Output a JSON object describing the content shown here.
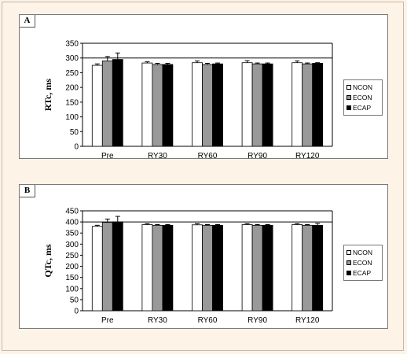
{
  "series_colors": {
    "NCON": "#ffffff",
    "ECON": "#999999",
    "ECAP": "#000000"
  },
  "chart_data": [
    {
      "panel": "A",
      "type": "bar",
      "ylabel": "RTc, ms",
      "ylim": [
        0,
        350
      ],
      "yticks": [
        0,
        50,
        100,
        150,
        200,
        250,
        300,
        350
      ],
      "categories": [
        "Pre",
        "RY30",
        "RY60",
        "RY90",
        "RY120"
      ],
      "legend": "right",
      "series": [
        {
          "name": "NCON",
          "values": [
            275,
            283,
            284,
            284,
            284
          ],
          "errors": [
            5,
            4,
            6,
            7,
            6
          ]
        },
        {
          "name": "ECON",
          "values": [
            290,
            278,
            278,
            280,
            280
          ],
          "errors": [
            15,
            4,
            4,
            3,
            3
          ]
        },
        {
          "name": "ECAP",
          "values": [
            295,
            278,
            280,
            280,
            282
          ],
          "errors": [
            22,
            4,
            3,
            3,
            2
          ]
        }
      ]
    },
    {
      "panel": "B",
      "type": "bar",
      "ylabel": "QTc, ms",
      "ylim": [
        0,
        450
      ],
      "yticks": [
        0,
        50,
        100,
        150,
        200,
        250,
        300,
        350,
        400,
        450
      ],
      "categories": [
        "Pre",
        "RY30",
        "RY60",
        "RY90",
        "RY120"
      ],
      "legend": "right",
      "series": [
        {
          "name": "NCON",
          "values": [
            380,
            388,
            387,
            388,
            388
          ],
          "errors": [
            5,
            4,
            5,
            4,
            4
          ]
        },
        {
          "name": "ECON",
          "values": [
            398,
            385,
            385,
            385,
            385
          ],
          "errors": [
            15,
            3,
            3,
            3,
            3
          ]
        },
        {
          "name": "ECAP",
          "values": [
            400,
            385,
            385,
            385,
            385
          ],
          "errors": [
            25,
            3,
            3,
            3,
            8
          ]
        }
      ]
    }
  ]
}
